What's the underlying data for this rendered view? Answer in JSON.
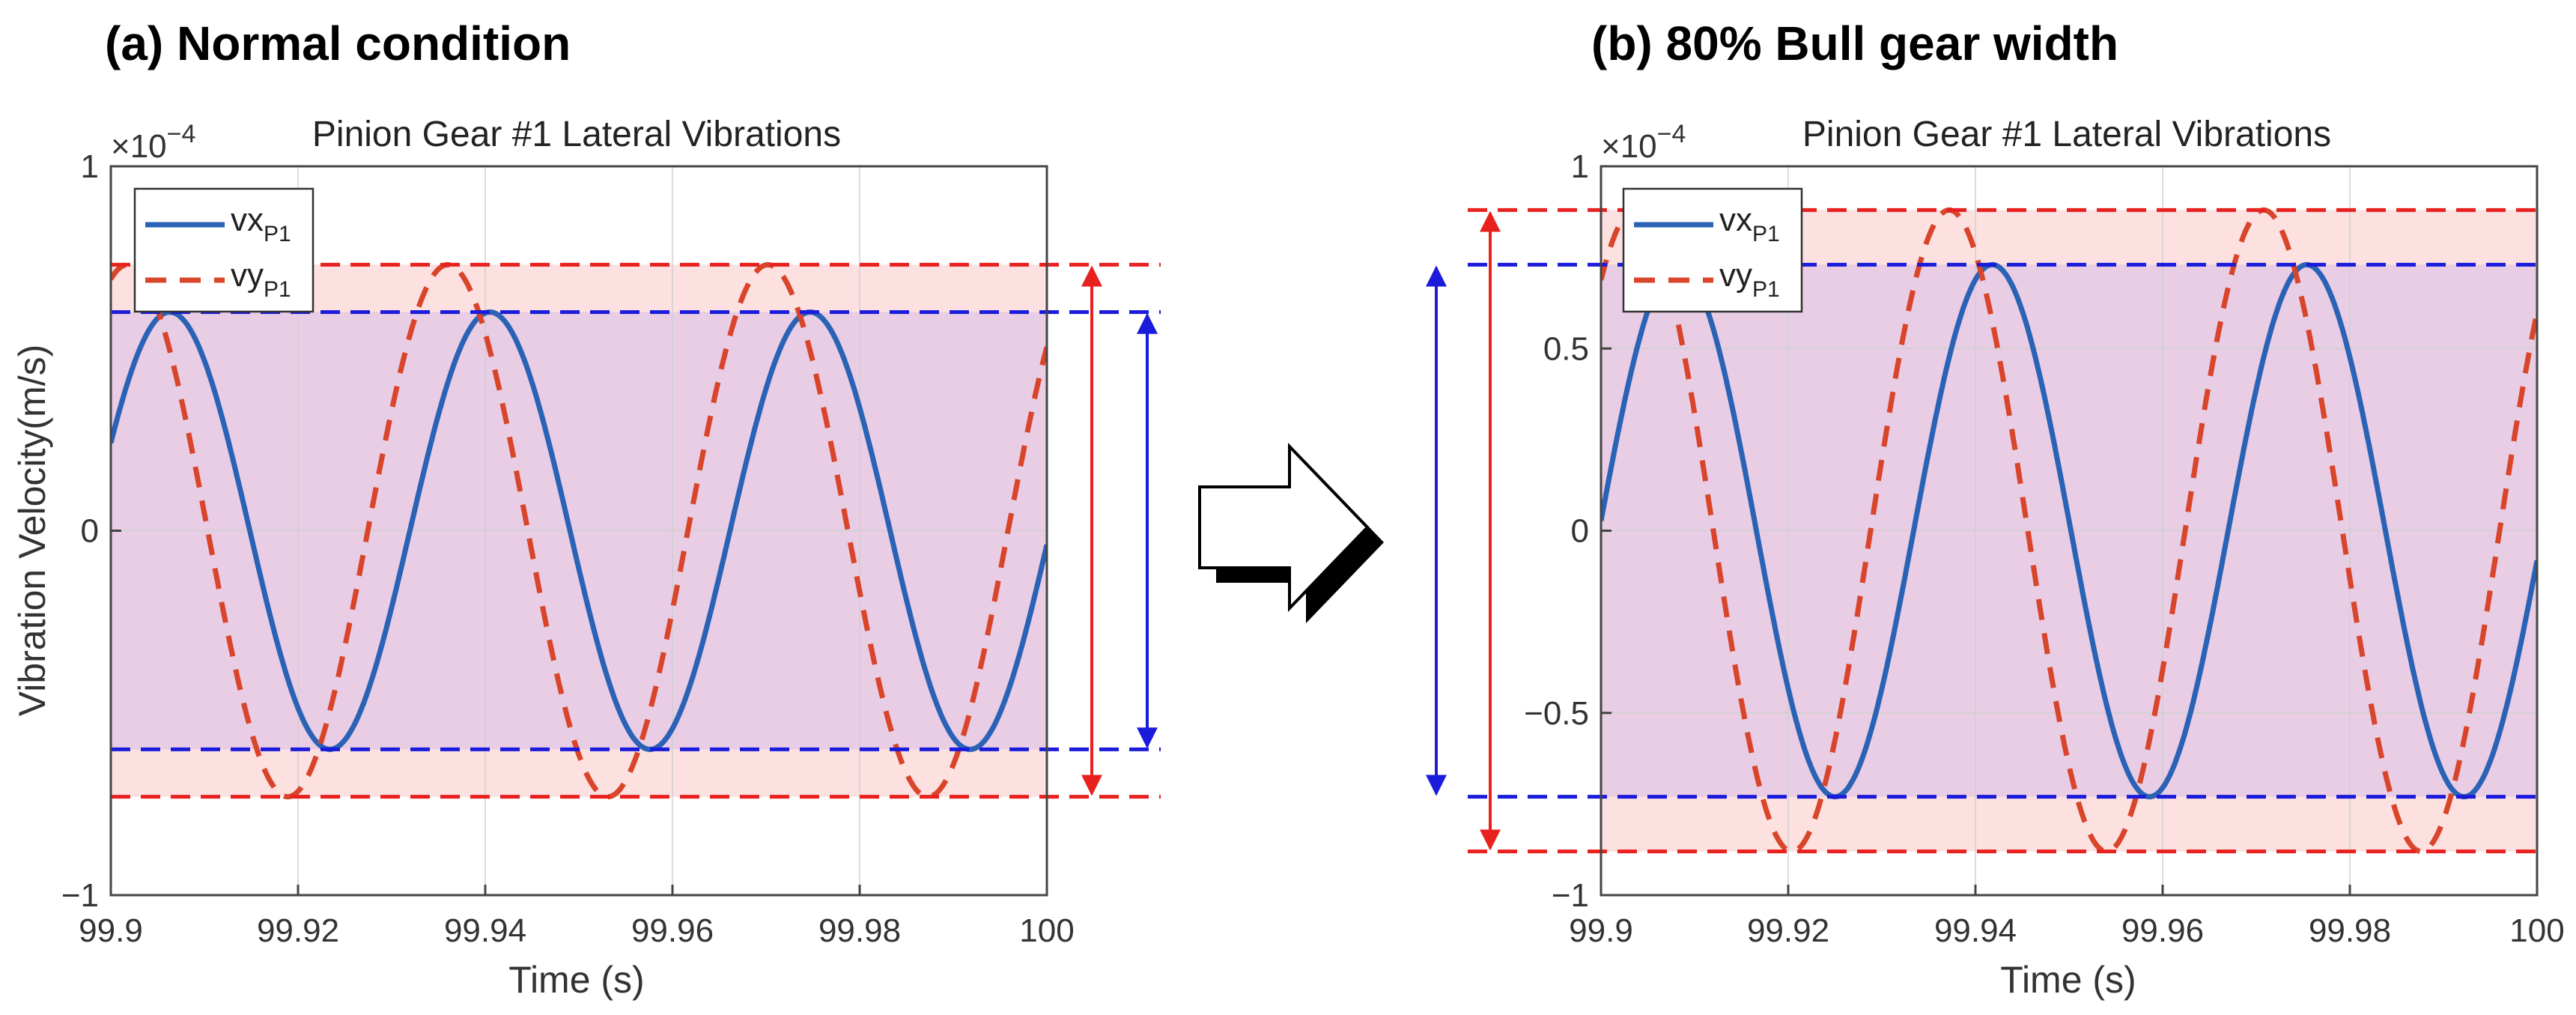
{
  "figure": {
    "arrow_name": "comparison-arrow"
  },
  "colors": {
    "vx": "#2a62b5",
    "vy": "#d8452a",
    "red_line": "#e8211e",
    "blue_line": "#1b1bdb",
    "red_band": "#fde0e0",
    "purple_band": "#e8cde4",
    "grid": "#d9d9d9"
  },
  "chart_data": [
    {
      "panel_label": "(a) Normal condition",
      "title": "Pinion Gear #1 Lateral Vibrations",
      "type": "line",
      "xlabel": "Time (s)",
      "ylabel": "Vibration Velocity(m/s)",
      "exponent_base": "×10",
      "exponent_power": "−4",
      "xlim": [
        99.9,
        100
      ],
      "ylim": [
        -1,
        1
      ],
      "xticks": [
        99.9,
        99.92,
        99.94,
        99.96,
        99.98,
        100
      ],
      "xtick_labels": [
        "99.9",
        "99.92",
        "99.94",
        "99.96",
        "99.98",
        "100"
      ],
      "yticks": [
        -1,
        0,
        1
      ],
      "ytick_labels": [
        "−1",
        "0",
        "1"
      ],
      "legend": [
        {
          "base": "vx",
          "sub": "P1",
          "style": "solid"
        },
        {
          "base": "vy",
          "sub": "P1",
          "style": "dashed"
        }
      ],
      "series": [
        {
          "name": "vx_P1",
          "style": "solid",
          "amplitude": 0.6,
          "peak_time": 99.9063,
          "period": 0.0342
        },
        {
          "name": "vy_P1",
          "style": "dashed",
          "amplitude": 0.73,
          "peak_time": 99.9018,
          "period": 0.0342
        }
      ],
      "bands": {
        "vx_amplitude": 0.6,
        "vy_amplitude": 0.73
      },
      "range_arrows": "right"
    },
    {
      "panel_label": "(b) 80% Bull gear width",
      "title": "Pinion Gear #1 Lateral Vibrations",
      "type": "line",
      "xlabel": "Time (s)",
      "ylabel": "",
      "exponent_base": "×10",
      "exponent_power": "−4",
      "xlim": [
        99.9,
        100
      ],
      "ylim": [
        -1,
        1
      ],
      "xticks": [
        99.9,
        99.92,
        99.94,
        99.96,
        99.98,
        100
      ],
      "xtick_labels": [
        "99.9",
        "99.92",
        "99.94",
        "99.96",
        "99.98",
        "100"
      ],
      "yticks": [
        -1,
        -0.5,
        0,
        0.5,
        1
      ],
      "ytick_labels": [
        "−1",
        "−0.5",
        "0",
        "0.5",
        "1"
      ],
      "legend": [
        {
          "base": "vx",
          "sub": "P1",
          "style": "solid"
        },
        {
          "base": "vy",
          "sub": "P1",
          "style": "dashed"
        }
      ],
      "series": [
        {
          "name": "vx_P1",
          "style": "solid",
          "amplitude": 0.73,
          "peak_time": 99.9082,
          "period": 0.0336
        },
        {
          "name": "vy_P1",
          "style": "dashed",
          "amplitude": 0.88,
          "peak_time": 99.9036,
          "period": 0.0336
        }
      ],
      "bands": {
        "vx_amplitude": 0.73,
        "vy_amplitude": 0.88
      },
      "range_arrows": "left"
    }
  ]
}
